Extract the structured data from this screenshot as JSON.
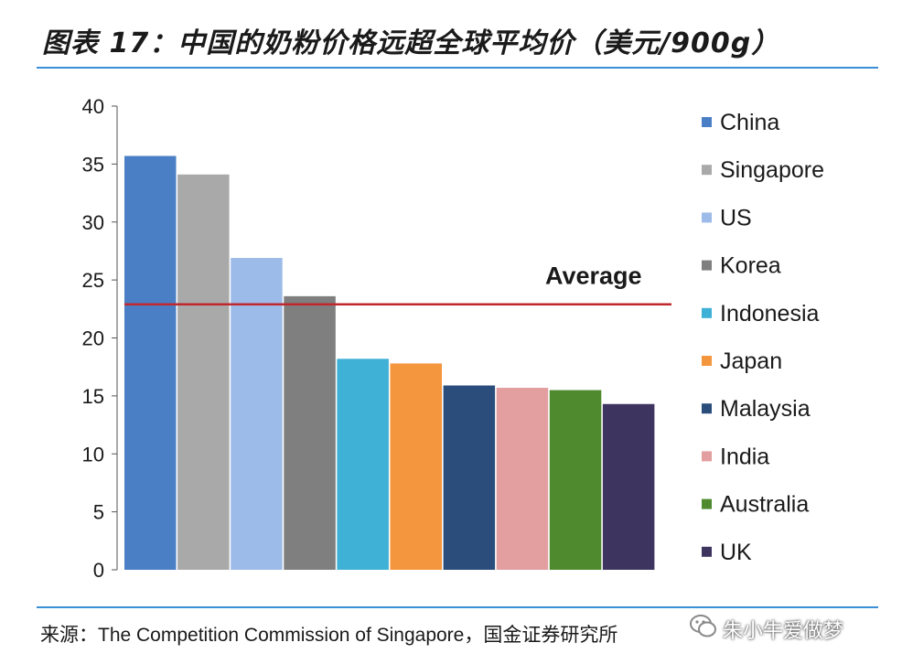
{
  "header": {
    "title": "图表 17：中国的奶粉价格远超全球平均价（美元/900g）"
  },
  "footer": {
    "source": "来源：The Competition Commission of Singapore，国金证券研究所",
    "watermark": "朱小牛爱做梦",
    "watermark_icon": "wechat-icon"
  },
  "chart_data": {
    "type": "bar",
    "title": "中国的奶粉价格远超全球平均价（美元/900g）",
    "xlabel": "",
    "ylabel": "",
    "ylim": [
      0,
      40
    ],
    "yticks": [
      0,
      5,
      10,
      15,
      20,
      25,
      30,
      35,
      40
    ],
    "grid": false,
    "legend_position": "right",
    "categories": [
      "China",
      "Singapore",
      "US",
      "Korea",
      "Indonesia",
      "Japan",
      "Malaysia",
      "India",
      "Australia",
      "UK"
    ],
    "values": [
      35.7,
      34.1,
      26.9,
      23.6,
      18.2,
      17.8,
      15.9,
      15.7,
      15.5,
      14.3
    ],
    "colors": [
      "#4a7fc6",
      "#a9a9a9",
      "#9dbbe9",
      "#7f7f7f",
      "#3fb0d6",
      "#f4963d",
      "#2a4d7c",
      "#e39ea0",
      "#4f8a2e",
      "#3e3460"
    ],
    "reference_line": {
      "label": "Average",
      "value": 22.9,
      "color": "#c0282e"
    }
  }
}
